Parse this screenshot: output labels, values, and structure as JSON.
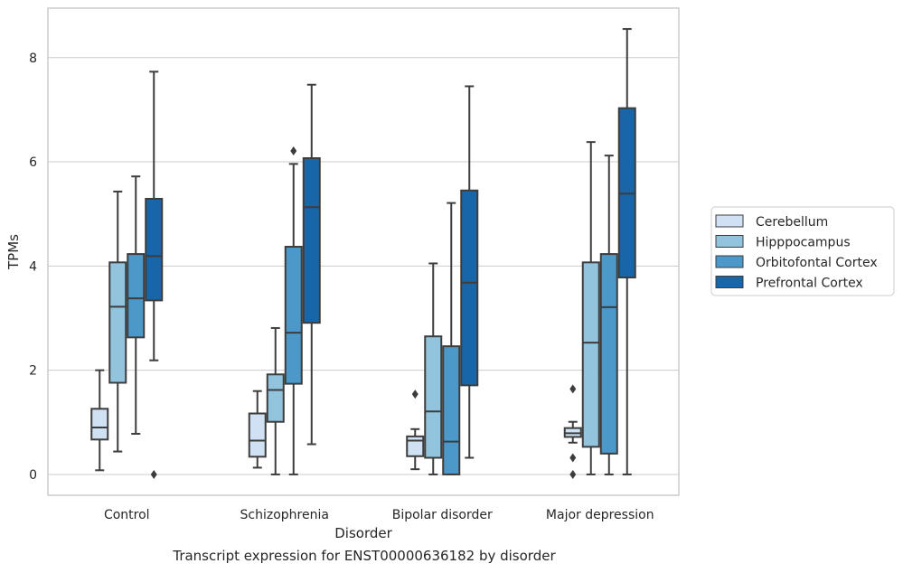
{
  "chart_data": {
    "type": "box",
    "caption": "Transcript expression for ENST00000636182 by disorder",
    "xlabel": "Disorder",
    "ylabel": "TPMs",
    "ylim": [
      -0.4,
      8.95
    ],
    "yticks": [
      0,
      2,
      4,
      6,
      8
    ],
    "grid": "horizontal",
    "legend_position": "right",
    "categories": [
      "Control",
      "Schizophrenia",
      "Bipolar disorder",
      "Major depression"
    ],
    "series": [
      {
        "name": "Cerebellum",
        "color": "#cfe1f2",
        "boxes": [
          {
            "whislo": 0.08,
            "q1": 0.67,
            "med": 0.9,
            "q3": 1.26,
            "whishi": 2.0,
            "fliers": []
          },
          {
            "whislo": 0.13,
            "q1": 0.34,
            "med": 0.65,
            "q3": 1.17,
            "whishi": 1.6,
            "fliers": []
          },
          {
            "whislo": 0.1,
            "q1": 0.35,
            "med": 0.65,
            "q3": 0.73,
            "whishi": 0.87,
            "fliers": [
              1.54
            ]
          },
          {
            "whislo": 0.61,
            "q1": 0.72,
            "med": 0.79,
            "q3": 0.89,
            "whishi": 1.01,
            "fliers": [
              1.64,
              0.32,
              0.0
            ]
          }
        ]
      },
      {
        "name": "Hipppocampus",
        "color": "#93c4de",
        "boxes": [
          {
            "whislo": 0.44,
            "q1": 1.76,
            "med": 3.22,
            "q3": 4.07,
            "whishi": 5.43,
            "fliers": []
          },
          {
            "whislo": 0.0,
            "q1": 1.01,
            "med": 1.62,
            "q3": 1.92,
            "whishi": 2.81,
            "fliers": []
          },
          {
            "whislo": 0.0,
            "q1": 0.32,
            "med": 1.21,
            "q3": 2.65,
            "whishi": 4.05,
            "fliers": []
          },
          {
            "whislo": 0.0,
            "q1": 0.53,
            "med": 2.53,
            "q3": 4.07,
            "whishi": 6.38,
            "fliers": []
          }
        ]
      },
      {
        "name": "Orbitofontal Cortex",
        "color": "#4b98c9",
        "boxes": [
          {
            "whislo": 0.78,
            "q1": 2.63,
            "med": 3.38,
            "q3": 4.23,
            "whishi": 5.72,
            "fliers": []
          },
          {
            "whislo": 0.0,
            "q1": 1.74,
            "med": 2.72,
            "q3": 4.37,
            "whishi": 5.96,
            "fliers": [
              6.21
            ]
          },
          {
            "whislo": 0.0,
            "q1": 0.0,
            "med": 0.63,
            "q3": 2.46,
            "whishi": 5.21,
            "fliers": []
          },
          {
            "whislo": 0.0,
            "q1": 0.4,
            "med": 3.21,
            "q3": 4.23,
            "whishi": 6.12,
            "fliers": []
          }
        ]
      },
      {
        "name": "Prefrontal Cortex",
        "color": "#1865a8",
        "boxes": [
          {
            "whislo": 2.19,
            "q1": 3.34,
            "med": 4.19,
            "q3": 5.29,
            "whishi": 7.73,
            "fliers": [
              0.0
            ]
          },
          {
            "whislo": 0.58,
            "q1": 2.91,
            "med": 5.13,
            "q3": 6.07,
            "whishi": 7.48,
            "fliers": []
          },
          {
            "whislo": 0.32,
            "q1": 1.71,
            "med": 3.68,
            "q3": 5.45,
            "whishi": 7.45,
            "fliers": []
          },
          {
            "whislo": 0.0,
            "q1": 3.78,
            "med": 5.39,
            "q3": 7.03,
            "whishi": 8.55,
            "fliers": []
          }
        ]
      }
    ]
  }
}
